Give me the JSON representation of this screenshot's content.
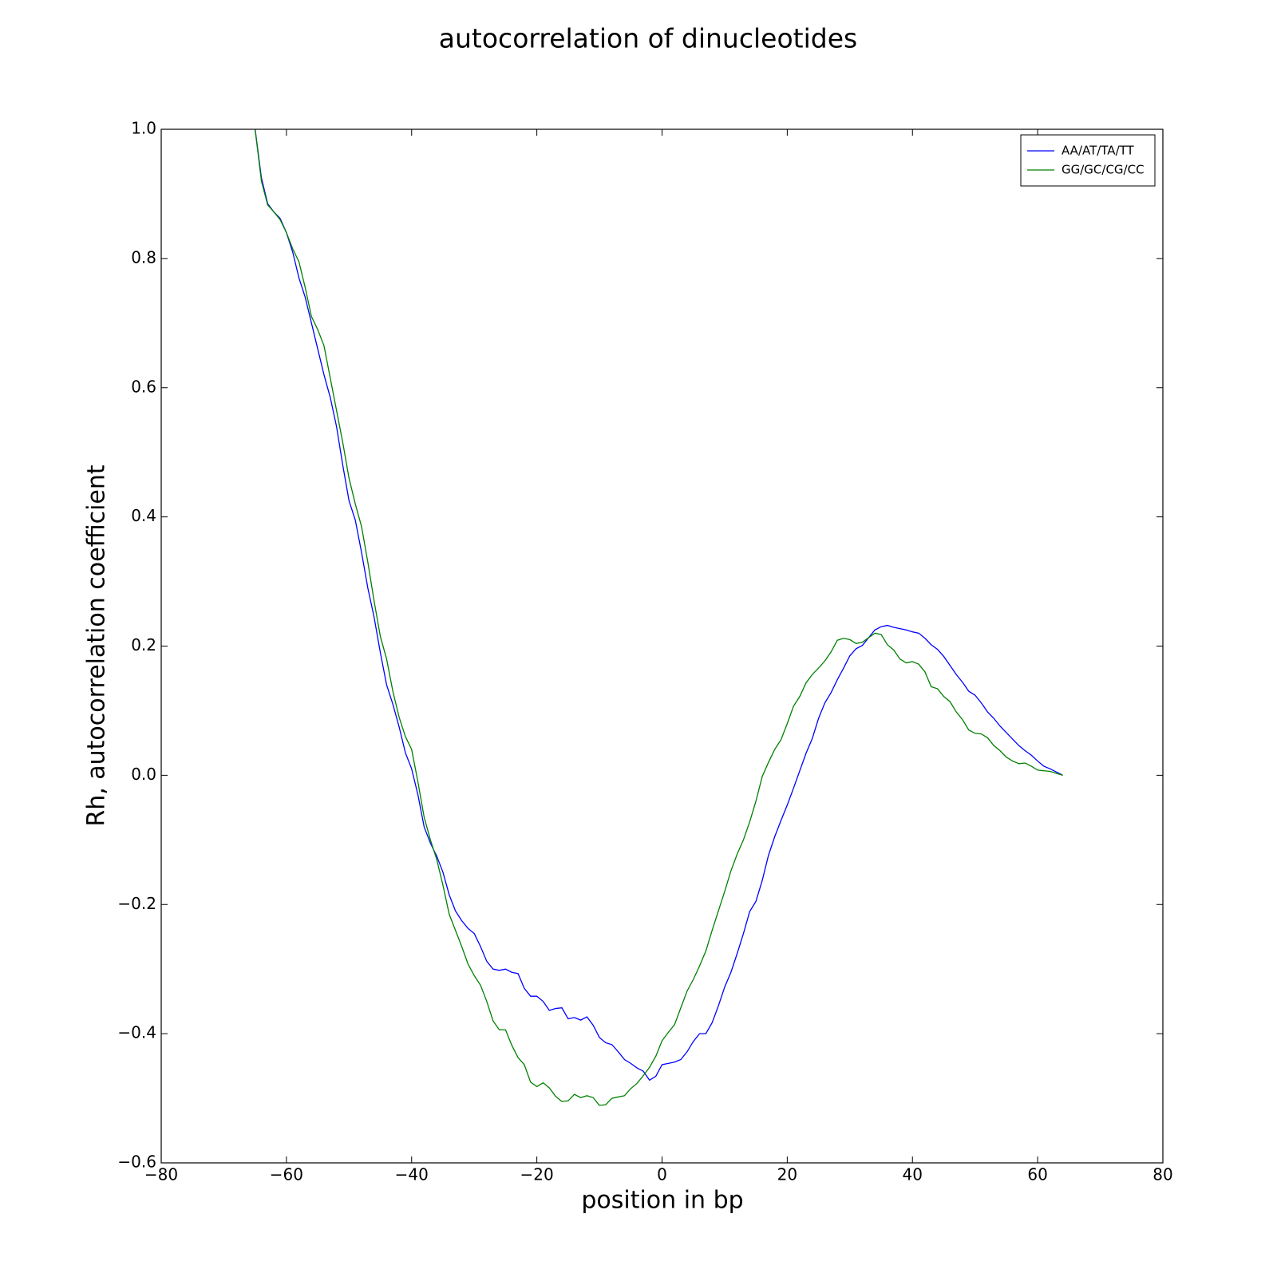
{
  "chart_data": {
    "type": "line",
    "title": "autocorrelation of dinucleotides",
    "x_label": "position in bp",
    "y_label": "Rh, autocorrelation coefficient",
    "x": [
      -65,
      -64,
      -63,
      -62,
      -61,
      -60,
      -59,
      -58,
      -57,
      -56,
      -55,
      -54,
      -53,
      -52,
      -51,
      -50,
      -49,
      -48,
      -47,
      -46,
      -45,
      -44,
      -43,
      -42,
      -41,
      -40,
      -39,
      -38,
      -37,
      -36,
      -35,
      -34,
      -33,
      -32,
      -31,
      -30,
      -29,
      -28,
      -27,
      -26,
      -25,
      -24,
      -23,
      -22,
      -21,
      -20,
      -19,
      -18,
      -17,
      -16,
      -15,
      -14,
      -13,
      -12,
      -11,
      -10,
      -9,
      -8,
      -7,
      -6,
      -5,
      -4,
      -3,
      -2,
      -1,
      0,
      1,
      2,
      3,
      4,
      5,
      6,
      7,
      8,
      9,
      10,
      11,
      12,
      13,
      14,
      15,
      16,
      17,
      18,
      19,
      20,
      21,
      22,
      23,
      24,
      25,
      26,
      27,
      28,
      29,
      30,
      31,
      32,
      33,
      34,
      35,
      36,
      37,
      38,
      39,
      40,
      41,
      42,
      43,
      44,
      45,
      46,
      47,
      48,
      49,
      50,
      51,
      52,
      53,
      54,
      55,
      56,
      57,
      58,
      59,
      60,
      61,
      62,
      63,
      64
    ],
    "series": [
      {
        "name": "AA/AT/TA/TT",
        "color": "#0000ff",
        "values": [
          1.0,
          0.925,
          0.885,
          0.872,
          0.862,
          0.84,
          0.81,
          0.77,
          0.74,
          0.7,
          0.66,
          0.62,
          0.585,
          0.54,
          0.48,
          0.425,
          0.395,
          0.345,
          0.29,
          0.245,
          0.19,
          0.14,
          0.11,
          0.075,
          0.035,
          0.01,
          -0.03,
          -0.08,
          -0.105,
          -0.125,
          -0.15,
          -0.185,
          -0.21,
          -0.225,
          -0.237,
          -0.245,
          -0.265,
          -0.288,
          -0.3,
          -0.302,
          -0.3,
          -0.305,
          -0.307,
          -0.33,
          -0.342,
          -0.342,
          -0.35,
          -0.364,
          -0.361,
          -0.36,
          -0.377,
          -0.375,
          -0.379,
          -0.374,
          -0.387,
          -0.406,
          -0.414,
          -0.417,
          -0.428,
          -0.44,
          -0.446,
          -0.453,
          -0.458,
          -0.472,
          -0.466,
          -0.448,
          -0.446,
          -0.444,
          -0.44,
          -0.428,
          -0.412,
          -0.4,
          -0.4,
          -0.383,
          -0.357,
          -0.328,
          -0.305,
          -0.276,
          -0.245,
          -0.211,
          -0.195,
          -0.163,
          -0.124,
          -0.095,
          -0.07,
          -0.046,
          -0.02,
          0.007,
          0.034,
          0.057,
          0.088,
          0.112,
          0.128,
          0.148,
          0.166,
          0.185,
          0.196,
          0.201,
          0.213,
          0.225,
          0.23,
          0.232,
          0.229,
          0.227,
          0.225,
          0.222,
          0.22,
          0.212,
          0.202,
          0.195,
          0.184,
          0.17,
          0.156,
          0.144,
          0.13,
          0.124,
          0.112,
          0.098,
          0.088,
          0.076,
          0.066,
          0.056,
          0.046,
          0.038,
          0.031,
          0.022,
          0.014,
          0.01,
          0.005,
          0.0
        ]
      },
      {
        "name": "GG/GC/CG/CC",
        "color": "#008000",
        "values": [
          1.0,
          0.92,
          0.883,
          0.872,
          0.86,
          0.84,
          0.815,
          0.795,
          0.755,
          0.71,
          0.69,
          0.665,
          0.615,
          0.565,
          0.515,
          0.46,
          0.42,
          0.385,
          0.33,
          0.27,
          0.215,
          0.18,
          0.13,
          0.09,
          0.06,
          0.04,
          -0.01,
          -0.065,
          -0.1,
          -0.13,
          -0.17,
          -0.215,
          -0.24,
          -0.265,
          -0.292,
          -0.31,
          -0.325,
          -0.35,
          -0.38,
          -0.394,
          -0.394,
          -0.418,
          -0.437,
          -0.448,
          -0.475,
          -0.482,
          -0.476,
          -0.484,
          -0.497,
          -0.505,
          -0.504,
          -0.494,
          -0.499,
          -0.496,
          -0.499,
          -0.511,
          -0.51,
          -0.5,
          -0.498,
          -0.496,
          -0.485,
          -0.477,
          -0.465,
          -0.452,
          -0.435,
          -0.411,
          -0.398,
          -0.386,
          -0.36,
          -0.334,
          -0.316,
          -0.295,
          -0.272,
          -0.24,
          -0.21,
          -0.18,
          -0.148,
          -0.122,
          -0.1,
          -0.072,
          -0.04,
          -0.002,
          0.02,
          0.04,
          0.055,
          0.08,
          0.107,
          0.122,
          0.143,
          0.156,
          0.166,
          0.177,
          0.191,
          0.209,
          0.212,
          0.21,
          0.204,
          0.206,
          0.213,
          0.22,
          0.218,
          0.202,
          0.194,
          0.18,
          0.174,
          0.176,
          0.172,
          0.16,
          0.137,
          0.134,
          0.122,
          0.114,
          0.098,
          0.086,
          0.07,
          0.065,
          0.064,
          0.058,
          0.046,
          0.038,
          0.028,
          0.022,
          0.018,
          0.019,
          0.014,
          0.008,
          0.007,
          0.006,
          0.003,
          0.0
        ]
      }
    ],
    "xlim": [
      -80,
      80
    ],
    "xticks": [
      {
        "value": -80,
        "label": "−80"
      },
      {
        "value": -60,
        "label": "−60"
      },
      {
        "value": -40,
        "label": "−40"
      },
      {
        "value": -20,
        "label": "−20"
      },
      0,
      20,
      40,
      60,
      80
    ],
    "ylim": [
      -0.6,
      1.0
    ],
    "yticks": [
      {
        "value": -0.6,
        "label": "−0.6"
      },
      {
        "value": -0.4,
        "label": "−0.4"
      },
      {
        "value": -0.2,
        "label": "−0.2"
      },
      {
        "value": 0,
        "label": "0.0"
      },
      0.2,
      0.4,
      0.6,
      0.8,
      {
        "value": 1.0,
        "label": "1.0"
      }
    ],
    "grid": false,
    "legend": "upper-right"
  }
}
